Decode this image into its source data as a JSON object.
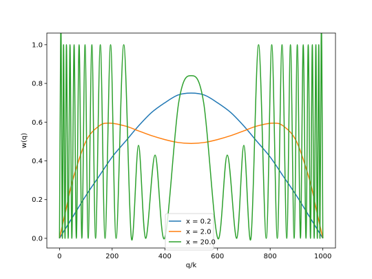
{
  "chart_data": {
    "type": "line",
    "title": "",
    "xlabel": "q/k",
    "ylabel": "w(q)",
    "xlim": [
      -48,
      1048
    ],
    "ylim": [
      -0.05,
      1.06
    ],
    "xticks": [
      0,
      200,
      400,
      600,
      800,
      1000
    ],
    "yticks": [
      0.0,
      0.2,
      0.4,
      0.6,
      0.8,
      1.0
    ],
    "xtick_labels": [
      "0",
      "200",
      "400",
      "600",
      "800",
      "1000"
    ],
    "ytick_labels": [
      "0.0",
      "0.2",
      "0.4",
      "0.6",
      "0.8",
      "1.0"
    ],
    "grid": false,
    "legend_position": "lower-center",
    "series": [
      {
        "name": "x = 0.2",
        "color": "#1f77b4",
        "x": [
          0,
          50,
          100,
          150,
          200,
          250,
          300,
          350,
          400,
          450,
          500,
          550,
          600,
          650,
          700,
          750,
          800,
          850,
          900,
          950,
          1000
        ],
        "y": [
          0.0,
          0.11,
          0.22,
          0.32,
          0.42,
          0.5,
          0.58,
          0.65,
          0.7,
          0.74,
          0.75,
          0.74,
          0.7,
          0.65,
          0.58,
          0.5,
          0.42,
          0.32,
          0.22,
          0.11,
          0.0
        ]
      },
      {
        "name": "x = 2.0",
        "color": "#ff7f0e",
        "x": [
          0,
          25,
          50,
          100,
          150,
          190,
          250,
          300,
          350,
          400,
          450,
          500,
          550,
          600,
          650,
          700,
          750,
          810,
          850,
          900,
          950,
          975,
          1000
        ],
        "y": [
          0.0,
          0.15,
          0.3,
          0.5,
          0.58,
          0.595,
          0.58,
          0.555,
          0.53,
          0.51,
          0.495,
          0.49,
          0.495,
          0.51,
          0.53,
          0.555,
          0.58,
          0.595,
          0.58,
          0.5,
          0.3,
          0.15,
          0.0
        ]
      },
      {
        "name": "x = 20.0",
        "color": "#2ca02c",
        "x": [
          0,
          4,
          6.5,
          11,
          15.5,
          21,
          26.5,
          33,
          40,
          47,
          55.5,
          64,
          74.5,
          85,
          97,
          109,
          123,
          137,
          155,
          173,
          194,
          215,
          244,
          273,
          300,
          327,
          363,
          399,
          452.5,
          500,
          547.5,
          601,
          637,
          673,
          700,
          727,
          756,
          785,
          806,
          827,
          845,
          863,
          877,
          891,
          903,
          915,
          925.5,
          936,
          944.5,
          953,
          960,
          967,
          973.5,
          979,
          984.5,
          989,
          993.5,
          996,
          1000
        ],
        "y": [
          0.0,
          0.96,
          1.0,
          0.0,
          1.0,
          0.0,
          1.0,
          0.0,
          1.0,
          0.0,
          1.0,
          0.0,
          1.0,
          0.0,
          1.0,
          0.0,
          1.0,
          0.0,
          1.0,
          0.0,
          1.0,
          0.0,
          1.0,
          0.0,
          0.48,
          0.0,
          0.43,
          0.0,
          0.7,
          0.84,
          0.7,
          0.0,
          0.43,
          0.0,
          0.48,
          0.0,
          1.0,
          0.0,
          1.0,
          0.0,
          1.0,
          0.0,
          1.0,
          0.0,
          1.0,
          0.0,
          1.0,
          0.0,
          1.0,
          0.0,
          1.0,
          0.0,
          1.0,
          0.0,
          1.0,
          0.0,
          1.0,
          0.96,
          0.0
        ]
      }
    ]
  }
}
